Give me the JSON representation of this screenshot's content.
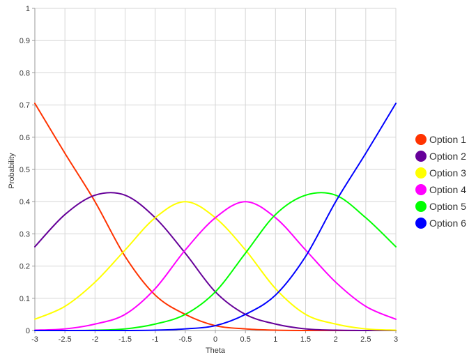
{
  "chart_data": {
    "type": "line",
    "title": "",
    "xlabel": "Theta",
    "ylabel": "Probability",
    "xlim": [
      -3,
      3
    ],
    "ylim": [
      0,
      1
    ],
    "x_ticks": [
      "-3",
      "-2.5",
      "-2",
      "-1.5",
      "-1",
      "-0.5",
      "0",
      "0.5",
      "1",
      "1.5",
      "2",
      "2.5",
      "3"
    ],
    "y_ticks": [
      "0",
      "0.1",
      "0.2",
      "0.3",
      "0.4",
      "0.5",
      "0.6",
      "0.7",
      "0.8",
      "0.9",
      "1"
    ],
    "grid": true,
    "legend_position": "right",
    "x": [
      -3,
      -2.5,
      -2,
      -1.5,
      -1,
      -0.5,
      0,
      0.5,
      1,
      1.5,
      2,
      2.5,
      3
    ],
    "series": [
      {
        "name": "Option 1",
        "color": "#ff3300",
        "values": [
          0.705,
          0.55,
          0.4,
          0.23,
          0.11,
          0.05,
          0.015,
          0.005,
          0.001,
          0.0,
          0.0,
          0.0,
          0.0
        ]
      },
      {
        "name": "Option 2",
        "color": "#660099",
        "values": [
          0.26,
          0.36,
          0.42,
          0.42,
          0.35,
          0.24,
          0.12,
          0.05,
          0.02,
          0.005,
          0.001,
          0.0,
          0.0
        ]
      },
      {
        "name": "Option 3",
        "color": "#ffff00",
        "values": [
          0.035,
          0.075,
          0.15,
          0.25,
          0.35,
          0.4,
          0.35,
          0.25,
          0.13,
          0.05,
          0.02,
          0.005,
          0.001
        ]
      },
      {
        "name": "Option 4",
        "color": "#ff00ff",
        "values": [
          0.001,
          0.005,
          0.02,
          0.05,
          0.13,
          0.25,
          0.35,
          0.4,
          0.35,
          0.25,
          0.15,
          0.075,
          0.035
        ]
      },
      {
        "name": "Option 5",
        "color": "#00ff00",
        "values": [
          0.0,
          0.0,
          0.001,
          0.005,
          0.02,
          0.05,
          0.12,
          0.24,
          0.36,
          0.42,
          0.42,
          0.35,
          0.26
        ]
      },
      {
        "name": "Option 6",
        "color": "#0000ff",
        "values": [
          0.0,
          0.0,
          0.0,
          0.0,
          0.001,
          0.005,
          0.015,
          0.05,
          0.11,
          0.23,
          0.4,
          0.55,
          0.705
        ]
      }
    ]
  }
}
